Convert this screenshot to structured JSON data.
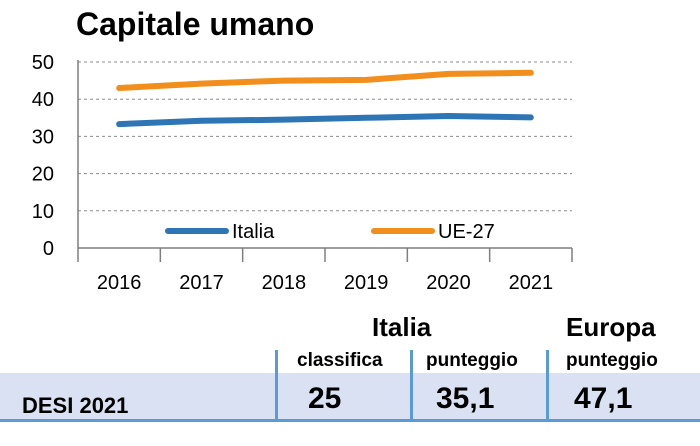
{
  "chart_data": {
    "type": "line",
    "title": "Capitale umano",
    "x": [
      "2016",
      "2017",
      "2018",
      "2019",
      "2020",
      "2021"
    ],
    "series": [
      {
        "name": "Italia",
        "color": "#2e75b6",
        "values": [
          33.3,
          34.2,
          34.5,
          35.0,
          35.5,
          35.1
        ]
      },
      {
        "name": "UE-27",
        "color": "#f28e1c",
        "values": [
          43.0,
          44.2,
          45.0,
          45.2,
          46.8,
          47.1
        ]
      }
    ],
    "yticks": [
      "0",
      "10",
      "20",
      "30",
      "40",
      "50"
    ],
    "ylim": [
      0,
      50
    ],
    "grid": "horizontal-dashed",
    "legend": "inside-bottom"
  },
  "table": {
    "group_italia": "Italia",
    "group_europa": "Europa",
    "sub_classifica": "classifica",
    "sub_punteggio_it": "punteggio",
    "sub_punteggio_eu": "punteggio",
    "row_label": "DESI 2021",
    "val_classifica": "25",
    "val_punteggio_it": "35,1",
    "val_punteggio_eu": "47,1",
    "band_color": "#d9e1f2",
    "border_color": "#5b9bd5"
  }
}
